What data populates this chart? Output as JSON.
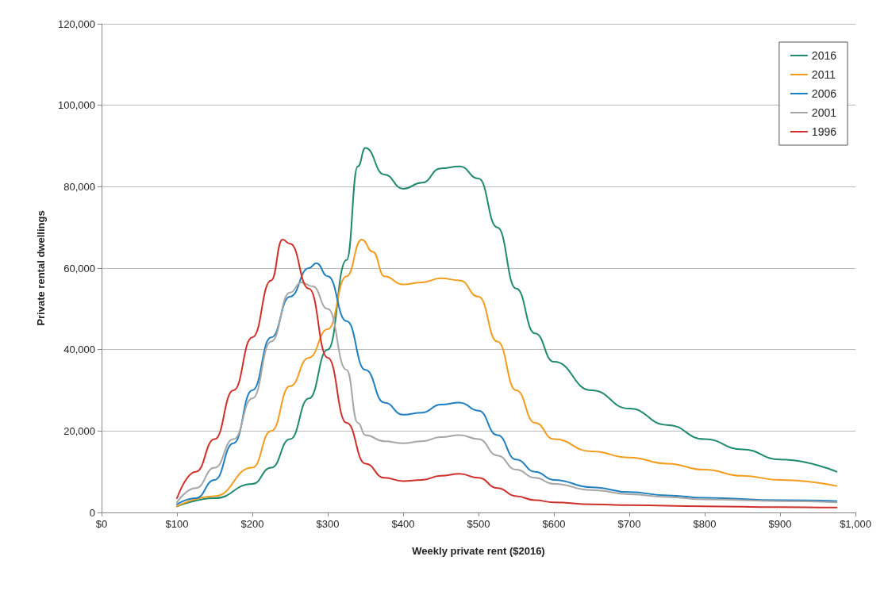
{
  "chart_data": {
    "type": "line",
    "xlabel": "Weekly private rent ($2016)",
    "ylabel": "Private rental dwellings",
    "xlim": [
      0,
      1000
    ],
    "xticks": [
      {
        "value": 0,
        "label": "$0"
      },
      {
        "value": 100,
        "label": "$100"
      },
      {
        "value": 200,
        "label": "$200"
      },
      {
        "value": 300,
        "label": "$300"
      },
      {
        "value": 400,
        "label": "$400"
      },
      {
        "value": 500,
        "label": "$500"
      },
      {
        "value": 600,
        "label": "$600"
      },
      {
        "value": 700,
        "label": "$700"
      },
      {
        "value": 800,
        "label": "$800"
      },
      {
        "value": 900,
        "label": "$900"
      },
      {
        "value": 1000,
        "label": "$1,000"
      }
    ],
    "ylim": [
      0,
      120000
    ],
    "yticks": [
      {
        "value": 0,
        "label": "0"
      },
      {
        "value": 20000,
        "label": "20,000"
      },
      {
        "value": 40000,
        "label": "40,000"
      },
      {
        "value": 60000,
        "label": "60,000"
      },
      {
        "value": 80000,
        "label": "80,000"
      },
      {
        "value": 100000,
        "label": "100,000"
      },
      {
        "value": 120000,
        "label": "120,000"
      }
    ],
    "grid": "y",
    "legend": "top right",
    "marker": "none",
    "line_style": "solid",
    "series": [
      {
        "name": "2016",
        "color": "#1f8a6e",
        "x": [
          100,
          150,
          200,
          225,
          250,
          275,
          300,
          325,
          340,
          350,
          375,
          400,
          425,
          450,
          475,
          500,
          525,
          550,
          575,
          600,
          650,
          700,
          750,
          800,
          850,
          900,
          975
        ],
        "values": [
          1500,
          3500,
          7000,
          11000,
          18000,
          28000,
          40000,
          62000,
          85000,
          89500,
          83000,
          79500,
          81000,
          84500,
          85000,
          82000,
          70000,
          55000,
          44000,
          37000,
          30000,
          25500,
          21500,
          18000,
          15500,
          13000,
          10000
        ]
      },
      {
        "name": "2011",
        "color": "#f39c1e",
        "x": [
          100,
          150,
          200,
          225,
          250,
          275,
          300,
          325,
          345,
          360,
          375,
          400,
          425,
          450,
          475,
          500,
          525,
          550,
          575,
          600,
          650,
          700,
          750,
          800,
          850,
          900,
          975
        ],
        "values": [
          1500,
          4000,
          11000,
          20000,
          31000,
          38000,
          45000,
          58000,
          67000,
          64000,
          58000,
          56000,
          56500,
          57500,
          57000,
          53000,
          42000,
          30000,
          22000,
          18000,
          15000,
          13500,
          12000,
          10500,
          9000,
          8000,
          6500
        ]
      },
      {
        "name": "2006",
        "color": "#1f7fbf",
        "x": [
          100,
          125,
          150,
          175,
          200,
          225,
          250,
          275,
          285,
          300,
          325,
          350,
          375,
          400,
          425,
          450,
          475,
          500,
          525,
          550,
          575,
          600,
          650,
          700,
          750,
          800,
          900,
          975
        ],
        "values": [
          2000,
          3500,
          8000,
          17000,
          30000,
          43000,
          53000,
          60000,
          61200,
          58000,
          47000,
          35000,
          27000,
          24000,
          24500,
          26500,
          27000,
          25000,
          19000,
          13000,
          10000,
          8000,
          6200,
          5000,
          4200,
          3600,
          3000,
          2800
        ]
      },
      {
        "name": "2001",
        "color": "#a6a6a6",
        "x": [
          100,
          125,
          150,
          175,
          200,
          225,
          250,
          265,
          280,
          300,
          325,
          340,
          350,
          375,
          400,
          425,
          450,
          475,
          500,
          525,
          550,
          575,
          600,
          650,
          700,
          750,
          800,
          900,
          975
        ],
        "values": [
          2500,
          6000,
          11000,
          18000,
          28000,
          42000,
          54000,
          56500,
          55500,
          50000,
          35000,
          22000,
          19000,
          17500,
          17000,
          17500,
          18500,
          19000,
          18000,
          14000,
          10500,
          8500,
          7000,
          5500,
          4500,
          3800,
          3200,
          2800,
          2500
        ]
      },
      {
        "name": "1996",
        "color": "#d0302b",
        "x": [
          100,
          125,
          150,
          175,
          200,
          225,
          240,
          250,
          275,
          300,
          325,
          350,
          375,
          400,
          425,
          450,
          475,
          500,
          525,
          550,
          575,
          600,
          650,
          700,
          800,
          900,
          975
        ],
        "values": [
          3500,
          10000,
          18000,
          30000,
          43000,
          57000,
          67000,
          66000,
          55000,
          38000,
          22000,
          12000,
          8500,
          7700,
          8000,
          9000,
          9500,
          8500,
          6000,
          4000,
          3000,
          2500,
          2000,
          1800,
          1500,
          1300,
          1200
        ]
      }
    ]
  }
}
